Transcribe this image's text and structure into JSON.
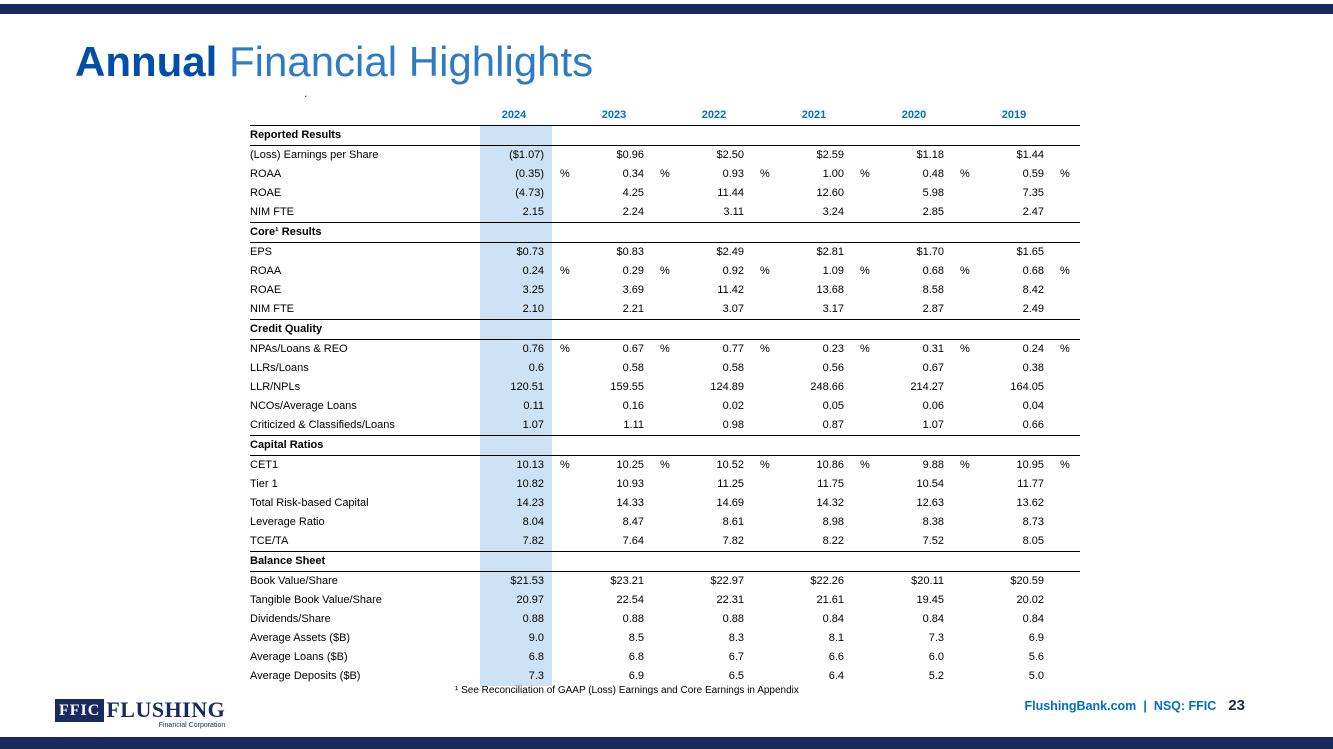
{
  "colors": {
    "navy": "#1B2A5E",
    "title-dark": "#004EA8",
    "title-light": "#2E7BC4",
    "year-blue": "#0070C0",
    "highlight": "#CDE3F5"
  },
  "slide": {
    "title": {
      "bold": "Annual",
      "rest": " Financial Highlights"
    },
    "stray_mark": ".",
    "footnote": "¹ See Reconciliation of GAAP (Loss) Earnings and Core Earnings in Appendix",
    "footer": {
      "site": "FlushingBank.com",
      "separator": "|",
      "ticker": "NSQ: FFIC",
      "page": "23"
    }
  },
  "logo": {
    "mark": "FFIC",
    "name": "FLUSHING",
    "subtitle": "Financial Corporation"
  },
  "table": {
    "years": [
      "2024",
      "2023",
      "2022",
      "2021",
      "2020",
      "2019"
    ],
    "sections": [
      {
        "header": "Reported Results",
        "rows": [
          {
            "label": "(Loss) Earnings per Share",
            "pct": false,
            "values": [
              "($1.07)",
              "$0.96",
              "$2.50",
              "$2.59",
              "$1.18",
              "$1.44"
            ]
          },
          {
            "label": "ROAA",
            "pct": true,
            "values": [
              "(0.35)",
              "0.34",
              "0.93",
              "1.00",
              "0.48",
              "0.59"
            ]
          },
          {
            "label": "ROAE",
            "pct": false,
            "values": [
              "(4.73)",
              "4.25",
              "11.44",
              "12.60",
              "5.98",
              "7.35"
            ]
          },
          {
            "label": "NIM FTE",
            "pct": false,
            "values": [
              "2.15",
              "2.24",
              "3.11",
              "3.24",
              "2.85",
              "2.47"
            ]
          }
        ]
      },
      {
        "header": "Core¹ Results",
        "rows": [
          {
            "label": "EPS",
            "pct": false,
            "values": [
              "$0.73",
              "$0.83",
              "$2.49",
              "$2.81",
              "$1.70",
              "$1.65"
            ]
          },
          {
            "label": "ROAA",
            "pct": true,
            "values": [
              "0.24",
              "0.29",
              "0.92",
              "1.09",
              "0.68",
              "0.68"
            ]
          },
          {
            "label": "ROAE",
            "pct": false,
            "values": [
              "3.25",
              "3.69",
              "11.42",
              "13.68",
              "8.58",
              "8.42"
            ]
          },
          {
            "label": "NIM FTE",
            "pct": false,
            "values": [
              "2.10",
              "2.21",
              "3.07",
              "3.17",
              "2.87",
              "2.49"
            ]
          }
        ]
      },
      {
        "header": "Credit Quality",
        "rows": [
          {
            "label": "NPAs/Loans & REO",
            "pct": true,
            "values": [
              "0.76",
              "0.67",
              "0.77",
              "0.23",
              "0.31",
              "0.24"
            ]
          },
          {
            "label": "LLRs/Loans",
            "pct": false,
            "values": [
              "0.6",
              "0.58",
              "0.58",
              "0.56",
              "0.67",
              "0.38"
            ]
          },
          {
            "label": "LLR/NPLs",
            "pct": false,
            "values": [
              "120.51",
              "159.55",
              "124.89",
              "248.66",
              "214.27",
              "164.05"
            ]
          },
          {
            "label": "NCOs/Average Loans",
            "pct": false,
            "values": [
              "0.11",
              "0.16",
              "0.02",
              "0.05",
              "0.06",
              "0.04"
            ]
          },
          {
            "label": "Criticized & Classifieds/Loans",
            "pct": false,
            "values": [
              "1.07",
              "1.11",
              "0.98",
              "0.87",
              "1.07",
              "0.66"
            ]
          }
        ]
      },
      {
        "header": "Capital Ratios",
        "rows": [
          {
            "label": "CET1",
            "pct": true,
            "values": [
              "10.13",
              "10.25",
              "10.52",
              "10.86",
              "9.88",
              "10.95"
            ]
          },
          {
            "label": "Tier 1",
            "pct": false,
            "values": [
              "10.82",
              "10.93",
              "11.25",
              "11.75",
              "10.54",
              "11.77"
            ]
          },
          {
            "label": "Total Risk-based Capital",
            "pct": false,
            "values": [
              "14.23",
              "14.33",
              "14.69",
              "14.32",
              "12.63",
              "13.62"
            ]
          },
          {
            "label": "Leverage Ratio",
            "pct": false,
            "values": [
              "8.04",
              "8.47",
              "8.61",
              "8.98",
              "8.38",
              "8.73"
            ]
          },
          {
            "label": "TCE/TA",
            "pct": false,
            "values": [
              "7.82",
              "7.64",
              "7.82",
              "8.22",
              "7.52",
              "8.05"
            ]
          }
        ]
      },
      {
        "header": "Balance Sheet",
        "rows": [
          {
            "label": "Book Value/Share",
            "pct": false,
            "values": [
              "$21.53",
              "$23.21",
              "$22.97",
              "$22.26",
              "$20.11",
              "$20.59"
            ]
          },
          {
            "label": "Tangible Book Value/Share",
            "pct": false,
            "values": [
              "20.97",
              "22.54",
              "22.31",
              "21.61",
              "19.45",
              "20.02"
            ]
          },
          {
            "label": "Dividends/Share",
            "pct": false,
            "values": [
              "0.88",
              "0.88",
              "0.88",
              "0.84",
              "0.84",
              "0.84"
            ]
          },
          {
            "label": "Average Assets ($B)",
            "pct": false,
            "values": [
              "9.0",
              "8.5",
              "8.3",
              "8.1",
              "7.3",
              "6.9"
            ]
          },
          {
            "label": "Average Loans ($B)",
            "pct": false,
            "values": [
              "6.8",
              "6.8",
              "6.7",
              "6.6",
              "6.0",
              "5.6"
            ]
          },
          {
            "label": "Average Deposits ($B)",
            "pct": false,
            "values": [
              "7.3",
              "6.9",
              "6.5",
              "6.4",
              "5.2",
              "5.0"
            ]
          }
        ]
      }
    ]
  }
}
